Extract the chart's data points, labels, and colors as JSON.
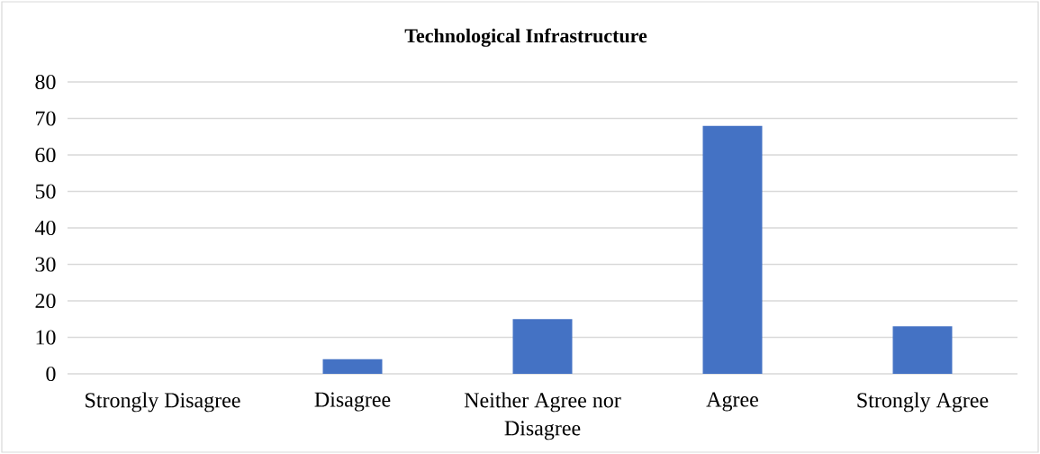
{
  "chart_data": {
    "type": "bar",
    "title": "Technological Infrastructure",
    "categories": [
      "Strongly Disagree",
      "Disagree",
      "Neither Agree nor Disagree",
      "Agree",
      "Strongly Agree"
    ],
    "values": [
      0,
      4,
      15,
      68,
      13
    ],
    "color": "#4472c4",
    "ylim": [
      0,
      80
    ],
    "yticks": [
      0,
      10,
      20,
      30,
      40,
      50,
      60,
      70,
      80
    ],
    "grid": "y"
  }
}
